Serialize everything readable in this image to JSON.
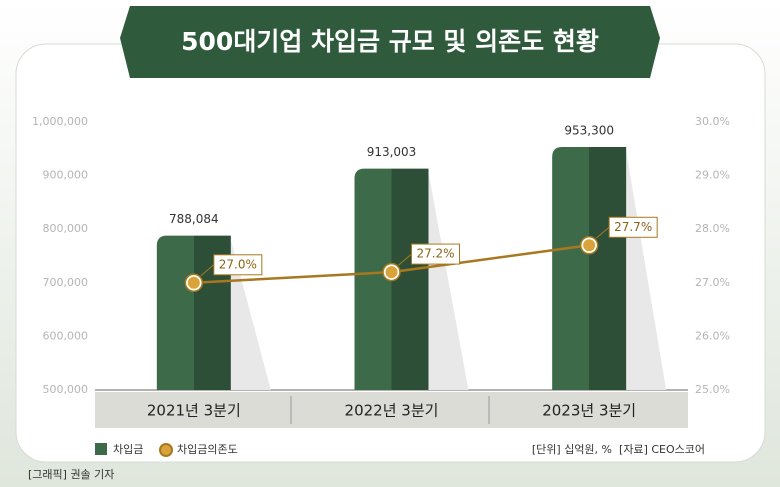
{
  "chart_data": {
    "type": "bar",
    "title": "500대기업 차입금 규모 및 의존도 현황",
    "categories": [
      "2021년 3분기",
      "2022년 3분기",
      "2023년 3분기"
    ],
    "series": [
      {
        "name": "차입금",
        "color": "#3d6b4a",
        "values": [
          788084,
          913003,
          953300
        ],
        "value_labels": [
          "788,084",
          "913,003",
          "953,300"
        ]
      },
      {
        "name": "차입금의존도",
        "type": "line",
        "axis": "y2",
        "color": "#a8781e",
        "values": [
          27.0,
          27.2,
          27.7
        ],
        "value_labels": [
          "27.0%",
          "27.2%",
          "27.7%"
        ]
      }
    ],
    "ylim": [
      500000,
      1000000
    ],
    "yticks": [
      {
        "value": 500000,
        "label": "500,000"
      },
      {
        "value": 600000,
        "label": "600,000"
      },
      {
        "value": 700000,
        "label": "700,000"
      },
      {
        "value": 800000,
        "label": "800,000"
      },
      {
        "value": 900000,
        "label": "900,000"
      },
      {
        "value": 1000000,
        "label": "1,000,000"
      }
    ],
    "y2lim": [
      25,
      30
    ],
    "y2ticks": [
      {
        "value": 25,
        "label": "25.0%"
      },
      {
        "value": 26,
        "label": "26.0%"
      },
      {
        "value": 27,
        "label": "27.0%"
      },
      {
        "value": 28,
        "label": "28.0%"
      },
      {
        "value": 29,
        "label": "29.0%"
      },
      {
        "value": 30,
        "label": "30.0%"
      }
    ],
    "unit_note": "[단위] 십억원, %",
    "source": "[자료] CEO스코어",
    "credit": "[그래픽] 권솔 기자"
  }
}
